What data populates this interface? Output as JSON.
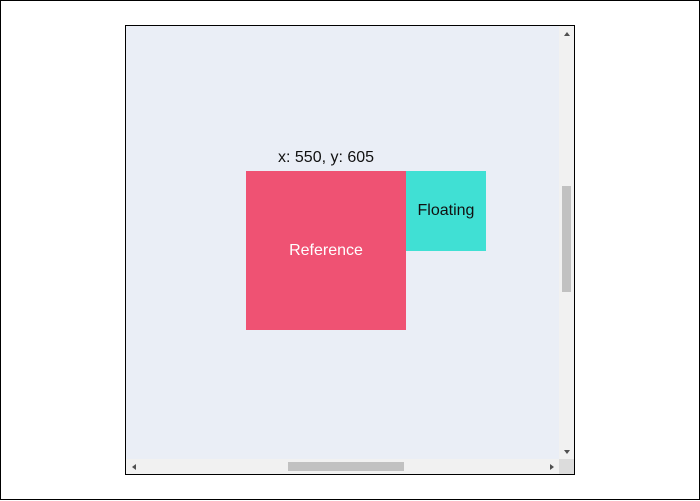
{
  "coords_label": "x: 550, y: 605",
  "reference": {
    "label": "Reference",
    "color": "#ef5273"
  },
  "floating": {
    "label": "Floating",
    "color": "#40e0d4"
  },
  "container": {
    "background": "#eaeef6"
  },
  "icons": {
    "scroll_up": "triangle-up",
    "scroll_down": "triangle-down",
    "scroll_left": "triangle-left",
    "scroll_right": "triangle-right"
  }
}
